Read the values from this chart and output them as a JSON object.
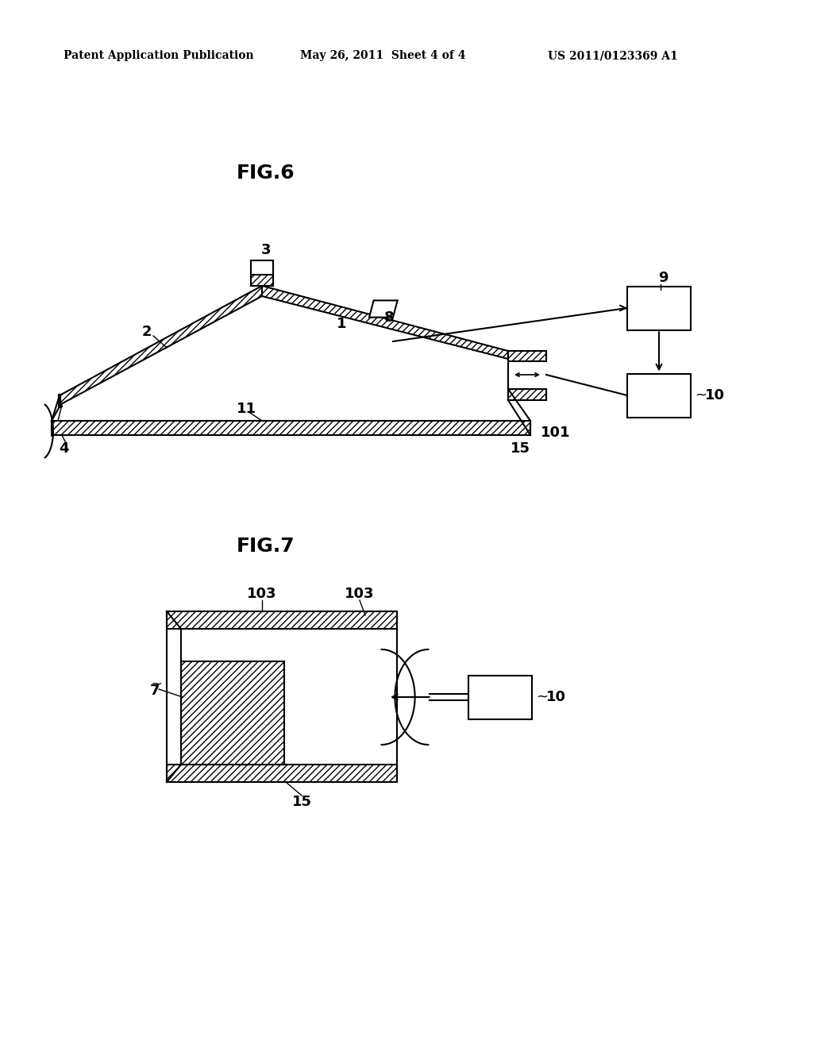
{
  "bg_color": "#ffffff",
  "header_left": "Patent Application Publication",
  "header_mid": "May 26, 2011  Sheet 4 of 4",
  "header_right": "US 2011/0123369 A1",
  "fig6_title": "FIG.6",
  "fig7_title": "FIG.7",
  "line_color": "#000000",
  "label_fontsize": 13,
  "title_fontsize": 18,
  "header_fontsize": 10
}
